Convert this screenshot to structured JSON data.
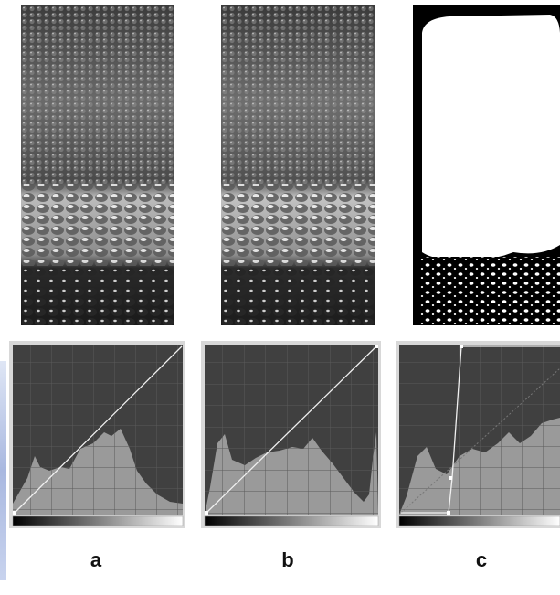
{
  "panels": [
    {
      "id": "a",
      "label": "a",
      "threshold": "none"
    },
    {
      "id": "b",
      "label": "b",
      "threshold": "none"
    },
    {
      "id": "c",
      "label": "c",
      "threshold": "binary"
    }
  ],
  "colors": {
    "curve_background": "#404040",
    "histogram_fill": "#9a9a9a",
    "grid_line": "#5a5a5a",
    "curve_line": "#f0f0f0",
    "label_text": "#111111"
  },
  "icons": [
    "curve-point-icon"
  ]
}
